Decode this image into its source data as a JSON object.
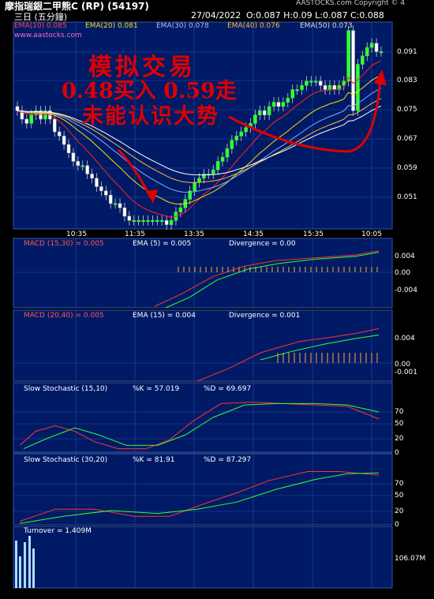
{
  "header": {
    "title": "摩指瑞銀二甲熊C (RP)  (54197)",
    "interval": "三日 (五分鐘)",
    "copyright": "AASTOCKS.com Copyright © 4",
    "date": "27/04/2022",
    "ohlc": "O:0.087  H:0.09  L:0.087  C:0.088",
    "url": "www.aastocks.com"
  },
  "colors": {
    "panel": "#001a66",
    "grid": "#2a4aa8",
    "ema10": "#ff2222",
    "ema20": "#ffdd00",
    "ema30": "#88aaff",
    "ema40": "#ffbb33",
    "ema50": "#ffffff",
    "green": "#33ff33",
    "red": "#ff3333",
    "annotation": "#e00000"
  },
  "annotation": {
    "line1": "模拟交易",
    "line2": "0.48买入 0.59走",
    "line3": "未能认识大势"
  },
  "chart_data": [
    {
      "type": "candlestick",
      "legend": [
        {
          "name": "EMA(10)",
          "value": "0.085",
          "color": "#ff2222"
        },
        {
          "name": "EMA(20)",
          "value": "0.081",
          "color": "#ffdd00"
        },
        {
          "name": "EMA(30)",
          "value": "0.078",
          "color": "#88aaff"
        },
        {
          "name": "EMA(40)",
          "value": "0.076",
          "color": "#ffbb33"
        },
        {
          "name": "EMA(50)",
          "value": "0.073",
          "color": "#ffffff"
        }
      ],
      "x_ticks": [
        "10:35",
        "11:35",
        "13:35",
        "14:35",
        "15:35",
        "10:05"
      ],
      "y_ticks": [
        "0.091",
        "0.083",
        "0.075",
        "0.067",
        "0.059",
        "0.051"
      ],
      "ylim": [
        0.046,
        0.095
      ],
      "close": [
        0.074,
        0.072,
        0.071,
        0.073,
        0.074,
        0.072,
        0.074,
        0.072,
        0.069,
        0.068,
        0.066,
        0.064,
        0.062,
        0.061,
        0.061,
        0.059,
        0.058,
        0.056,
        0.055,
        0.054,
        0.052,
        0.052,
        0.051,
        0.049,
        0.048,
        0.048,
        0.048,
        0.048,
        0.048,
        0.048,
        0.048,
        0.048,
        0.047,
        0.048,
        0.05,
        0.051,
        0.053,
        0.055,
        0.057,
        0.058,
        0.059,
        0.059,
        0.06,
        0.062,
        0.063,
        0.065,
        0.067,
        0.068,
        0.069,
        0.07,
        0.071,
        0.073,
        0.074,
        0.073,
        0.075,
        0.076,
        0.075,
        0.076,
        0.077,
        0.079,
        0.079,
        0.08,
        0.081,
        0.081,
        0.081,
        0.08,
        0.079,
        0.08,
        0.079,
        0.08,
        0.081,
        0.093,
        0.074,
        0.085,
        0.087,
        0.089,
        0.09,
        0.088,
        0.088
      ],
      "volume_label": "Turnover = 1.409M",
      "volume_tick": "106.07M"
    },
    {
      "type": "line",
      "title": "MACD (15,30) = 0.005",
      "series": [
        {
          "name": "EMA (5) = 0.005",
          "color": "#33ff33"
        },
        {
          "name": "Divergence = 0.00",
          "color": "#ffaa33"
        }
      ],
      "y_ticks": [
        "0.004",
        "0.00",
        "-0.004"
      ]
    },
    {
      "type": "line",
      "title": "MACD (20,40) = 0.005",
      "series": [
        {
          "name": "EMA (15) = 0.004",
          "color": "#33ff33"
        },
        {
          "name": "Divergence = 0.001",
          "color": "#ffaa33"
        }
      ],
      "y_ticks": [
        "0.004",
        "0.00",
        "-0.001"
      ]
    },
    {
      "type": "line",
      "title": "Slow Stochastic (15,10)",
      "series": [
        {
          "name": "%K = 57.019",
          "color": "#ff3333"
        },
        {
          "name": "%D = 69.697",
          "color": "#33ff33"
        }
      ],
      "y_ticks": [
        "70",
        "50",
        "20",
        "0"
      ]
    },
    {
      "type": "line",
      "title": "Slow Stochastic (30,20)",
      "series": [
        {
          "name": "%K = 81.91",
          "color": "#ff3333"
        },
        {
          "name": "%D = 87.297",
          "color": "#33ff33"
        }
      ],
      "y_ticks": [
        "70",
        "50",
        "20",
        "0"
      ]
    }
  ]
}
